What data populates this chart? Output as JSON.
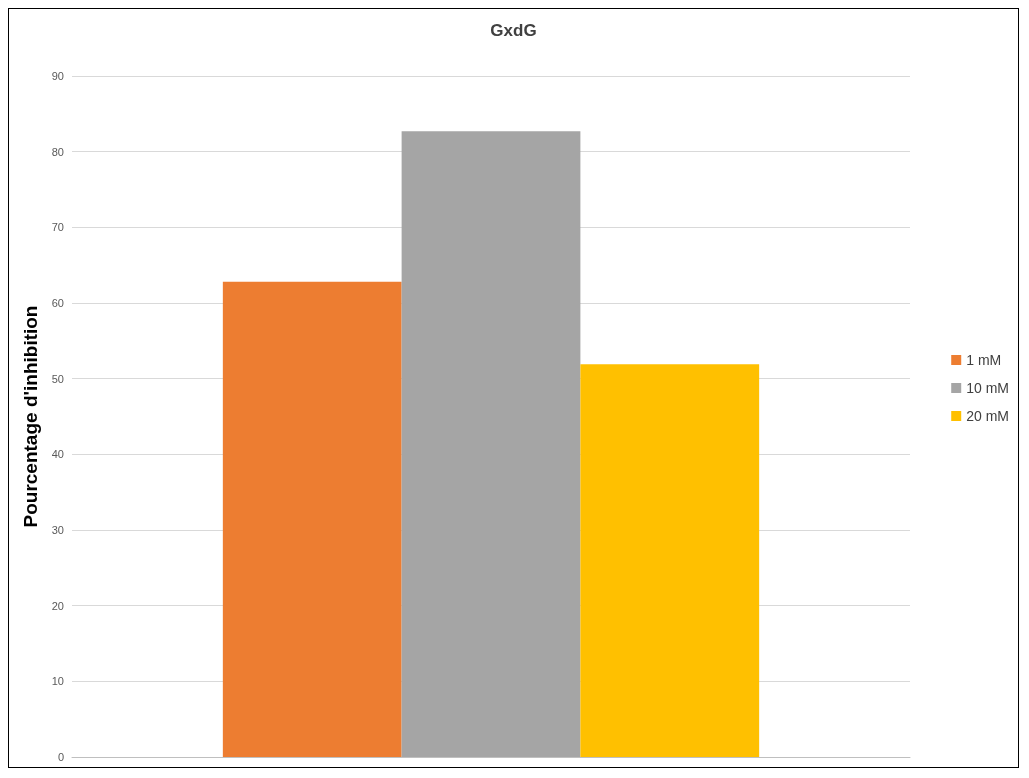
{
  "chart_data": {
    "type": "bar",
    "title": "GxdG",
    "ylabel": "Pourcentage d'inhibition",
    "categories": [
      null
    ],
    "series": [
      {
        "name": "1 mM",
        "color": "#ed7d31",
        "values": [
          62.8
        ]
      },
      {
        "name": "10 mM",
        "color": "#a5a5a5",
        "values": [
          82.7
        ]
      },
      {
        "name": "20 mM",
        "color": "#ffc000",
        "values": [
          51.9
        ]
      }
    ],
    "ylim": [
      0,
      90
    ],
    "yticks": [
      0,
      10,
      20,
      30,
      40,
      50,
      60,
      70,
      80,
      90
    ],
    "grid": "y",
    "legend": "right"
  }
}
